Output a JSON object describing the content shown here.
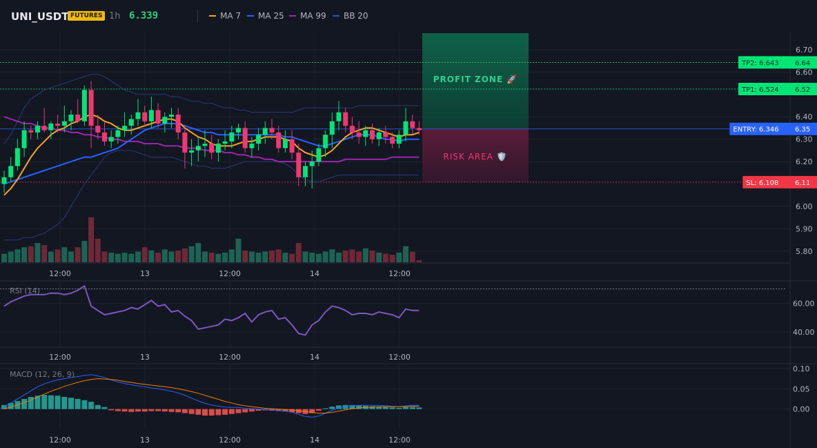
{
  "header": {
    "symbol": "UNI_USDT",
    "badge": "FUTURES",
    "timeframe": "1h",
    "price": "6.339",
    "legend": [
      {
        "name": "MA 7",
        "color": "#f7a525"
      },
      {
        "name": "MA 25",
        "color": "#2962ff"
      },
      {
        "name": "MA 99",
        "color": "#9c27b0"
      },
      {
        "name": "BB 20",
        "color": "#3451b2"
      }
    ]
  },
  "zones": {
    "profit_label": "PROFIT ZONE 🚀",
    "risk_label": "RISK AREA 🛡️"
  },
  "levels": [
    {
      "label": "TP2: 6.643",
      "value": 6.643,
      "axis": "6.64",
      "color": "#00e676"
    },
    {
      "label": "TP1: 6.524",
      "value": 6.524,
      "axis": "6.52",
      "color": "#00e676"
    },
    {
      "label": "ENTRY: 6.346",
      "value": 6.346,
      "axis": "6.35",
      "color": "#2962ff"
    },
    {
      "label": "SL: 6.108",
      "value": 6.108,
      "axis": "6.11",
      "color": "#f23645"
    }
  ],
  "panes": {
    "rsi_label": "RSI (14)",
    "macd_label": "MACD (12, 26, 9)"
  },
  "chart_data": {
    "type": "candlestick",
    "price_axis": {
      "ticks": [
        "6.70",
        "6.60",
        "6.40",
        "6.30",
        "6.20",
        "6.00",
        "5.90",
        "5.80"
      ],
      "ylim": [
        5.75,
        6.78
      ]
    },
    "time_axis": [
      "12:00",
      "13",
      "12:00",
      "14",
      "12:00"
    ],
    "candles": [
      [
        6.1,
        6.16,
        6.06,
        6.13
      ],
      [
        6.13,
        6.22,
        6.11,
        6.18
      ],
      [
        6.18,
        6.3,
        6.16,
        6.26
      ],
      [
        6.26,
        6.38,
        6.22,
        6.34
      ],
      [
        6.34,
        6.36,
        6.3,
        6.33
      ],
      [
        6.33,
        6.38,
        6.3,
        6.36
      ],
      [
        6.36,
        6.44,
        6.33,
        6.34
      ],
      [
        6.34,
        6.38,
        6.3,
        6.37
      ],
      [
        6.37,
        6.41,
        6.33,
        6.36
      ],
      [
        6.36,
        6.45,
        6.33,
        6.38
      ],
      [
        6.38,
        6.43,
        6.34,
        6.41
      ],
      [
        6.41,
        6.48,
        6.37,
        6.38
      ],
      [
        6.38,
        6.54,
        6.36,
        6.52
      ],
      [
        6.52,
        6.56,
        6.26,
        6.36
      ],
      [
        6.36,
        6.41,
        6.3,
        6.33
      ],
      [
        6.33,
        6.38,
        6.27,
        6.29
      ],
      [
        6.29,
        6.34,
        6.26,
        6.31
      ],
      [
        6.31,
        6.36,
        6.28,
        6.34
      ],
      [
        6.34,
        6.42,
        6.31,
        6.36
      ],
      [
        6.36,
        6.41,
        6.32,
        6.39
      ],
      [
        6.39,
        6.48,
        6.36,
        6.42
      ],
      [
        6.42,
        6.45,
        6.36,
        6.38
      ],
      [
        6.38,
        6.49,
        6.35,
        6.43
      ],
      [
        6.43,
        6.46,
        6.35,
        6.37
      ],
      [
        6.37,
        6.42,
        6.33,
        6.4
      ],
      [
        6.4,
        6.44,
        6.35,
        6.41
      ],
      [
        6.41,
        6.44,
        6.3,
        6.33
      ],
      [
        6.33,
        6.36,
        6.17,
        6.24
      ],
      [
        6.24,
        6.3,
        6.18,
        6.25
      ],
      [
        6.25,
        6.31,
        6.2,
        6.27
      ],
      [
        6.27,
        6.34,
        6.22,
        6.28
      ],
      [
        6.28,
        6.32,
        6.21,
        6.24
      ],
      [
        6.24,
        6.3,
        6.2,
        6.28
      ],
      [
        6.28,
        6.34,
        6.25,
        6.29
      ],
      [
        6.29,
        6.36,
        6.26,
        6.33
      ],
      [
        6.33,
        6.37,
        6.3,
        6.35
      ],
      [
        6.35,
        6.38,
        6.24,
        6.26
      ],
      [
        6.26,
        6.31,
        6.22,
        6.28
      ],
      [
        6.28,
        6.35,
        6.25,
        6.32
      ],
      [
        6.32,
        6.38,
        6.28,
        6.35
      ],
      [
        6.35,
        6.39,
        6.3,
        6.33
      ],
      [
        6.33,
        6.36,
        6.24,
        6.26
      ],
      [
        6.26,
        6.34,
        6.24,
        6.3
      ],
      [
        6.3,
        6.34,
        6.21,
        6.24
      ],
      [
        6.24,
        6.28,
        6.09,
        6.13
      ],
      [
        6.13,
        6.2,
        6.09,
        6.18
      ],
      [
        6.18,
        6.25,
        6.08,
        6.2
      ],
      [
        6.2,
        6.28,
        6.18,
        6.26
      ],
      [
        6.26,
        6.34,
        6.22,
        6.32
      ],
      [
        6.32,
        6.42,
        6.26,
        6.38
      ],
      [
        6.38,
        6.47,
        6.34,
        6.42
      ],
      [
        6.42,
        6.44,
        6.33,
        6.36
      ],
      [
        6.36,
        6.4,
        6.3,
        6.33
      ],
      [
        6.33,
        6.38,
        6.28,
        6.31
      ],
      [
        6.31,
        6.36,
        6.27,
        6.34
      ],
      [
        6.34,
        6.37,
        6.28,
        6.3
      ],
      [
        6.3,
        6.35,
        6.27,
        6.33
      ],
      [
        6.33,
        6.36,
        6.28,
        6.31
      ],
      [
        6.31,
        6.33,
        6.26,
        6.28
      ],
      [
        6.28,
        6.34,
        6.26,
        6.32
      ],
      [
        6.32,
        6.44,
        6.29,
        6.38
      ],
      [
        6.38,
        6.41,
        6.32,
        6.35
      ],
      [
        6.35,
        6.38,
        6.32,
        6.34
      ]
    ],
    "volume": [
      8,
      10,
      12,
      14,
      15,
      18,
      16,
      10,
      12,
      14,
      10,
      14,
      20,
      42,
      22,
      10,
      9,
      8,
      9,
      8,
      10,
      14,
      11,
      9,
      12,
      10,
      11,
      13,
      15,
      18,
      10,
      9,
      8,
      9,
      12,
      22,
      11,
      10,
      9,
      10,
      11,
      12,
      9,
      8,
      18,
      10,
      9,
      8,
      10,
      12,
      9,
      11,
      12,
      10,
      13,
      11,
      9,
      8,
      7,
      9,
      15,
      10,
      2
    ],
    "ma7": [
      6.05,
      6.08,
      6.12,
      6.17,
      6.22,
      6.26,
      6.29,
      6.32,
      6.34,
      6.35,
      6.37,
      6.38,
      6.4,
      6.41,
      6.4,
      6.38,
      6.37,
      6.35,
      6.34,
      6.34,
      6.35,
      6.36,
      6.37,
      6.38,
      6.39,
      6.39,
      6.38,
      6.35,
      6.33,
      6.31,
      6.3,
      6.28,
      6.27,
      6.27,
      6.27,
      6.28,
      6.29,
      6.29,
      6.3,
      6.31,
      6.31,
      6.31,
      6.3,
      6.29,
      6.26,
      6.24,
      6.23,
      6.22,
      6.23,
      6.25,
      6.28,
      6.31,
      6.33,
      6.34,
      6.35,
      6.35,
      6.34,
      6.33,
      6.32,
      6.31,
      6.32,
      6.32,
      6.33
    ],
    "ma25": [
      6.1,
      6.11,
      6.12,
      6.13,
      6.14,
      6.15,
      6.16,
      6.17,
      6.18,
      6.19,
      6.2,
      6.21,
      6.22,
      6.22,
      6.23,
      6.24,
      6.25,
      6.26,
      6.28,
      6.3,
      6.32,
      6.34,
      6.35,
      6.36,
      6.37,
      6.37,
      6.37,
      6.36,
      6.35,
      6.34,
      6.33,
      6.33,
      6.32,
      6.32,
      6.32,
      6.32,
      6.32,
      6.32,
      6.32,
      6.32,
      6.32,
      6.32,
      6.31,
      6.31,
      6.3,
      6.29,
      6.28,
      6.27,
      6.27,
      6.28,
      6.29,
      6.3,
      6.31,
      6.32,
      6.32,
      6.32,
      6.31,
      6.3,
      6.3,
      6.29,
      6.3,
      6.3,
      6.3
    ],
    "ma99": [
      6.4,
      6.39,
      6.38,
      6.37,
      6.37,
      6.36,
      6.35,
      6.35,
      6.34,
      6.34,
      6.33,
      6.33,
      6.32,
      6.32,
      6.31,
      6.31,
      6.3,
      6.3,
      6.29,
      6.29,
      6.29,
      6.28,
      6.28,
      6.28,
      6.27,
      6.27,
      6.27,
      6.26,
      6.26,
      6.26,
      6.25,
      6.25,
      6.25,
      6.24,
      6.24,
      6.23,
      6.23,
      6.22,
      6.22,
      6.21,
      6.21,
      6.2,
      6.2,
      6.2,
      6.2,
      6.2,
      6.2,
      6.2,
      6.2,
      6.2,
      6.2,
      6.21,
      6.21,
      6.21,
      6.21,
      6.21,
      6.21,
      6.21,
      6.22,
      6.22,
      6.22,
      6.22,
      6.22
    ],
    "bb_upper": [
      6.28,
      6.32,
      6.38,
      6.44,
      6.48,
      6.5,
      6.52,
      6.53,
      6.54,
      6.55,
      6.56,
      6.57,
      6.58,
      6.59,
      6.59,
      6.58,
      6.56,
      6.54,
      6.52,
      6.51,
      6.5,
      6.5,
      6.5,
      6.5,
      6.5,
      6.49,
      6.49,
      6.48,
      6.47,
      6.47,
      6.46,
      6.46,
      6.45,
      6.44,
      6.44,
      6.43,
      6.43,
      6.42,
      6.42,
      6.42,
      6.42,
      6.42,
      6.42,
      6.42,
      6.43,
      6.44,
      6.44,
      6.44,
      6.44,
      6.44,
      6.44,
      6.44,
      6.44,
      6.45,
      6.45,
      6.45,
      6.45,
      6.45,
      6.45,
      6.45,
      6.45,
      6.45,
      6.45
    ],
    "bb_lower": [
      5.85,
      5.85,
      5.85,
      5.86,
      5.86,
      5.87,
      5.88,
      5.9,
      5.92,
      5.95,
      6.0,
      6.05,
      6.1,
      6.14,
      6.18,
      6.22,
      6.24,
      6.25,
      6.25,
      6.25,
      6.24,
      6.23,
      6.22,
      6.22,
      6.22,
      6.22,
      6.21,
      6.2,
      6.19,
      6.18,
      6.18,
      6.17,
      6.17,
      6.17,
      6.18,
      6.19,
      6.2,
      6.2,
      6.2,
      6.2,
      6.2,
      6.2,
      6.19,
      6.17,
      6.14,
      6.12,
      6.11,
      6.11,
      6.12,
      6.13,
      6.14,
      6.14,
      6.14,
      6.14,
      6.14,
      6.14,
      6.14,
      6.14,
      6.14,
      6.14,
      6.14,
      6.14,
      6.14
    ],
    "rsi": {
      "ticks": [
        "60.00",
        "40.00"
      ],
      "ylim": [
        30,
        75
      ],
      "values": [
        58,
        61,
        63,
        65,
        66,
        66,
        66,
        67,
        67,
        66,
        67,
        69,
        72,
        58,
        55,
        52,
        53,
        54,
        55,
        57,
        56,
        59,
        62,
        58,
        59,
        54,
        55,
        51,
        48,
        42,
        43,
        44,
        45,
        49,
        48,
        50,
        53,
        47,
        52,
        54,
        55,
        49,
        50,
        45,
        39,
        38,
        45,
        48,
        54,
        58,
        57,
        55,
        52,
        53,
        53,
        52,
        54,
        53,
        52,
        50,
        56,
        55,
        55
      ]
    },
    "macd": {
      "ticks": [
        "0.10",
        "0.05",
        "0.00"
      ],
      "ylim": [
        -0.05,
        0.11
      ],
      "hist": [
        0.01,
        0.015,
        0.02,
        0.025,
        0.03,
        0.033,
        0.035,
        0.034,
        0.033,
        0.03,
        0.028,
        0.025,
        0.022,
        0.018,
        0.01,
        0.005,
        -0.003,
        -0.005,
        -0.006,
        -0.007,
        -0.006,
        -0.006,
        -0.005,
        -0.005,
        -0.006,
        -0.007,
        -0.008,
        -0.01,
        -0.012,
        -0.014,
        -0.016,
        -0.016,
        -0.015,
        -0.014,
        -0.012,
        -0.01,
        -0.008,
        -0.006,
        -0.004,
        -0.003,
        -0.004,
        -0.005,
        -0.006,
        -0.008,
        -0.01,
        -0.012,
        -0.01,
        -0.004,
        0.002,
        0.006,
        0.009,
        0.01,
        0.01,
        0.009,
        0.008,
        0.007,
        0.006,
        0.005,
        0.004,
        0.003,
        0.005,
        0.005,
        0.004
      ],
      "macd_line": [
        0.005,
        0.015,
        0.025,
        0.035,
        0.045,
        0.055,
        0.062,
        0.068,
        0.072,
        0.075,
        0.078,
        0.08,
        0.083,
        0.085,
        0.082,
        0.078,
        0.072,
        0.067,
        0.063,
        0.06,
        0.057,
        0.055,
        0.052,
        0.05,
        0.047,
        0.044,
        0.04,
        0.034,
        0.027,
        0.02,
        0.014,
        0.01,
        0.007,
        0.005,
        0.004,
        0.004,
        0.002,
        0.001,
        0.0,
        -0.001,
        -0.002,
        -0.003,
        -0.005,
        -0.008,
        -0.013,
        -0.018,
        -0.02,
        -0.017,
        -0.01,
        -0.003,
        0.003,
        0.006,
        0.008,
        0.009,
        0.009,
        0.009,
        0.009,
        0.008,
        0.007,
        0.006,
        0.008,
        0.009,
        0.009
      ],
      "signal_line": [
        0.0,
        0.005,
        0.01,
        0.016,
        0.022,
        0.03,
        0.037,
        0.044,
        0.05,
        0.056,
        0.061,
        0.066,
        0.07,
        0.073,
        0.075,
        0.074,
        0.073,
        0.071,
        0.068,
        0.066,
        0.063,
        0.061,
        0.059,
        0.057,
        0.055,
        0.053,
        0.05,
        0.047,
        0.043,
        0.039,
        0.034,
        0.029,
        0.024,
        0.019,
        0.015,
        0.011,
        0.008,
        0.006,
        0.004,
        0.002,
        0.001,
        0.0,
        -0.001,
        -0.002,
        -0.004,
        -0.006,
        -0.008,
        -0.01,
        -0.01,
        -0.008,
        -0.005,
        -0.002,
        0.001,
        0.003,
        0.004,
        0.005,
        0.006,
        0.006,
        0.006,
        0.006,
        0.006,
        0.007,
        0.007
      ]
    }
  }
}
